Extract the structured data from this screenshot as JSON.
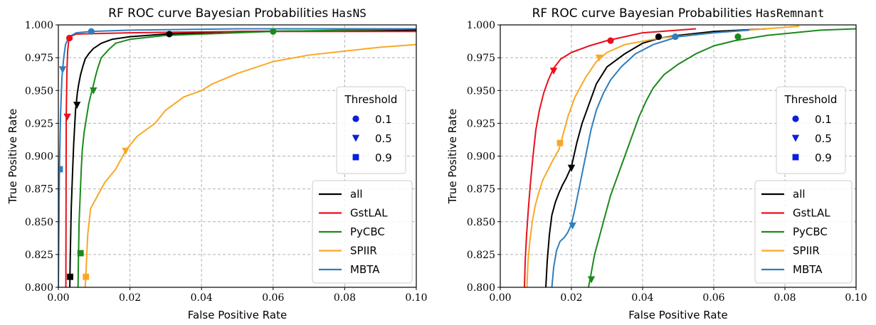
{
  "chart_data": [
    {
      "type": "line",
      "title": "RF ROC curve Bayesian Probabilities",
      "title_code": "HasNS",
      "xlabel": "False Positive Rate",
      "ylabel": "True Positive Rate",
      "xlim": [
        0.0,
        0.1
      ],
      "ylim": [
        0.8,
        1.0
      ],
      "xticks": [
        0.0,
        0.02,
        0.04,
        0.06,
        0.08,
        0.1
      ],
      "xtick_labels": [
        "0.00",
        "0.02",
        "0.04",
        "0.06",
        "0.08",
        "0.10"
      ],
      "yticks": [
        0.8,
        0.825,
        0.85,
        0.875,
        0.9,
        0.925,
        0.95,
        0.975,
        1.0
      ],
      "ytick_labels": [
        "0.800",
        "0.825",
        "0.850",
        "0.875",
        "0.900",
        "0.925",
        "0.950",
        "0.975",
        "1.000"
      ],
      "grid": true,
      "threshold_legend": {
        "title": "Threshold",
        "placement": "right",
        "entries": [
          {
            "label": "0.1",
            "marker": "circle"
          },
          {
            "label": "0.5",
            "marker": "triangle-down"
          },
          {
            "label": "0.9",
            "marker": "square"
          }
        ]
      },
      "series_legend_placement": "lower right",
      "series": [
        {
          "name": "all",
          "color": "#000000",
          "x": [
            0.0032,
            0.0033,
            0.0036,
            0.004,
            0.0043,
            0.0046,
            0.0048,
            0.005,
            0.0053,
            0.0057,
            0.0062,
            0.0068,
            0.0075,
            0.0085,
            0.0098,
            0.012,
            0.015,
            0.02,
            0.03,
            0.05,
            0.1
          ],
          "y": [
            0.8,
            0.82,
            0.86,
            0.89,
            0.91,
            0.925,
            0.935,
            0.94,
            0.948,
            0.955,
            0.962,
            0.968,
            0.974,
            0.978,
            0.982,
            0.986,
            0.989,
            0.991,
            0.993,
            0.995,
            0.996
          ],
          "thresholds": [
            {
              "marker": "circle",
              "x": 0.031,
              "y": 0.993
            },
            {
              "marker": "triangle-down",
              "x": 0.0052,
              "y": 0.939
            },
            {
              "marker": "square",
              "x": 0.0033,
              "y": 0.808
            }
          ]
        },
        {
          "name": "GstLAL",
          "color": "#e8101c",
          "x": [
            0.0021,
            0.0022,
            0.0024,
            0.0026,
            0.0029,
            0.0032,
            0.005,
            0.02,
            0.05,
            0.1
          ],
          "y": [
            0.8,
            0.93,
            0.965,
            0.98,
            0.988,
            0.991,
            0.993,
            0.994,
            0.995,
            0.995
          ],
          "thresholds": [
            {
              "marker": "circle",
              "x": 0.0031,
              "y": 0.99
            },
            {
              "marker": "triangle-down",
              "x": 0.0025,
              "y": 0.93
            }
          ]
        },
        {
          "name": "PyCBC",
          "color": "#1b8a1b",
          "x": [
            0.0055,
            0.0056,
            0.0058,
            0.0061,
            0.0064,
            0.0067,
            0.0072,
            0.0079,
            0.0085,
            0.0092,
            0.0097,
            0.0103,
            0.011,
            0.012,
            0.014,
            0.016,
            0.02,
            0.03,
            0.06,
            0.1
          ],
          "y": [
            0.8,
            0.82,
            0.85,
            0.87,
            0.89,
            0.905,
            0.918,
            0.93,
            0.94,
            0.948,
            0.953,
            0.96,
            0.967,
            0.975,
            0.981,
            0.986,
            0.989,
            0.992,
            0.995,
            0.997
          ],
          "thresholds": [
            {
              "marker": "circle",
              "x": 0.06,
              "y": 0.995
            },
            {
              "marker": "triangle-down",
              "x": 0.0098,
              "y": 0.95
            },
            {
              "marker": "square",
              "x": 0.0062,
              "y": 0.826
            }
          ]
        },
        {
          "name": "SPIIR",
          "color": "#f9a825",
          "x": [
            0.0075,
            0.0077,
            0.0082,
            0.009,
            0.011,
            0.013,
            0.016,
            0.019,
            0.022,
            0.027,
            0.03,
            0.035,
            0.04,
            0.043,
            0.05,
            0.06,
            0.07,
            0.08,
            0.09,
            0.1
          ],
          "y": [
            0.8,
            0.81,
            0.84,
            0.86,
            0.87,
            0.88,
            0.89,
            0.905,
            0.915,
            0.925,
            0.935,
            0.945,
            0.95,
            0.955,
            0.963,
            0.972,
            0.977,
            0.98,
            0.983,
            0.985
          ],
          "thresholds": [
            {
              "marker": "triangle-down",
              "x": 0.0188,
              "y": 0.904
            },
            {
              "marker": "square",
              "x": 0.0077,
              "y": 0.808
            }
          ]
        },
        {
          "name": "MBTA",
          "color": "#2e7ebc",
          "x": [
            0.0,
            0.0003,
            0.0006,
            0.001,
            0.0015,
            0.002,
            0.003,
            0.005,
            0.009,
            0.02,
            0.05,
            0.1
          ],
          "y": [
            0.8,
            0.89,
            0.93,
            0.96,
            0.975,
            0.985,
            0.991,
            0.994,
            0.995,
            0.996,
            0.997,
            0.997
          ],
          "thresholds": [
            {
              "marker": "circle",
              "x": 0.0092,
              "y": 0.995
            },
            {
              "marker": "triangle-down",
              "x": 0.0012,
              "y": 0.966
            },
            {
              "marker": "square",
              "x": 0.0004,
              "y": 0.89
            }
          ]
        }
      ]
    },
    {
      "type": "line",
      "title": "RF ROC curve Bayesian Probabilities",
      "title_code": "HasRemnant",
      "xlabel": "False Positive Rate",
      "ylabel": "True Positive Rate",
      "xlim": [
        0.0,
        0.1
      ],
      "ylim": [
        0.8,
        1.0
      ],
      "xticks": [
        0.0,
        0.02,
        0.04,
        0.06,
        0.08,
        0.1
      ],
      "xtick_labels": [
        "0.00",
        "0.02",
        "0.04",
        "0.06",
        "0.08",
        "0.10"
      ],
      "yticks": [
        0.8,
        0.825,
        0.85,
        0.875,
        0.9,
        0.925,
        0.95,
        0.975,
        1.0
      ],
      "ytick_labels": [
        "0.800",
        "0.825",
        "0.850",
        "0.875",
        "0.900",
        "0.925",
        "0.950",
        "0.975",
        "1.000"
      ],
      "grid": true,
      "threshold_legend": {
        "title": "Threshold",
        "placement": "right",
        "entries": [
          {
            "label": "0.1",
            "marker": "circle"
          },
          {
            "label": "0.5",
            "marker": "triangle-down"
          },
          {
            "label": "0.9",
            "marker": "square"
          }
        ]
      },
      "series_legend_placement": "lower right",
      "series": [
        {
          "name": "all",
          "color": "#000000",
          "x": [
            0.0128,
            0.0132,
            0.0138,
            0.0145,
            0.0155,
            0.0165,
            0.0175,
            0.0185,
            0.02,
            0.0215,
            0.023,
            0.025,
            0.027,
            0.03,
            0.035,
            0.04,
            0.045,
            0.05,
            0.06,
            0.075
          ],
          "y": [
            0.8,
            0.82,
            0.84,
            0.855,
            0.865,
            0.872,
            0.878,
            0.883,
            0.892,
            0.91,
            0.925,
            0.94,
            0.955,
            0.968,
            0.978,
            0.986,
            0.99,
            0.992,
            0.995,
            0.997
          ],
          "thresholds": [
            {
              "marker": "circle",
              "x": 0.0445,
              "y": 0.991
            },
            {
              "marker": "triangle-down",
              "x": 0.02,
              "y": 0.891
            }
          ]
        },
        {
          "name": "GstLAL",
          "color": "#e8101c",
          "x": [
            0.0068,
            0.007,
            0.0074,
            0.0079,
            0.0085,
            0.0092,
            0.01,
            0.011,
            0.0122,
            0.0135,
            0.015,
            0.017,
            0.02,
            0.025,
            0.03,
            0.035,
            0.04,
            0.05,
            0.055
          ],
          "y": [
            0.8,
            0.82,
            0.84,
            0.86,
            0.88,
            0.9,
            0.92,
            0.935,
            0.948,
            0.958,
            0.967,
            0.974,
            0.979,
            0.984,
            0.988,
            0.991,
            0.994,
            0.996,
            0.997
          ],
          "thresholds": [
            {
              "marker": "circle",
              "x": 0.031,
              "y": 0.988
            },
            {
              "marker": "triangle-down",
              "x": 0.015,
              "y": 0.965
            }
          ]
        },
        {
          "name": "PyCBC",
          "color": "#1b8a1b",
          "x": [
            0.0248,
            0.0255,
            0.0265,
            0.028,
            0.0295,
            0.031,
            0.033,
            0.035,
            0.037,
            0.039,
            0.041,
            0.043,
            0.046,
            0.05,
            0.055,
            0.06,
            0.066,
            0.075,
            0.09,
            0.1
          ],
          "y": [
            0.8,
            0.81,
            0.825,
            0.84,
            0.855,
            0.87,
            0.885,
            0.9,
            0.915,
            0.93,
            0.942,
            0.952,
            0.962,
            0.97,
            0.978,
            0.984,
            0.988,
            0.992,
            0.996,
            0.997
          ],
          "thresholds": [
            {
              "marker": "circle",
              "x": 0.0668,
              "y": 0.991
            },
            {
              "marker": "triangle-down",
              "x": 0.0256,
              "y": 0.806
            }
          ]
        },
        {
          "name": "SPIIR",
          "color": "#f9a825",
          "x": [
            0.0075,
            0.0078,
            0.0083,
            0.009,
            0.0098,
            0.0108,
            0.012,
            0.0135,
            0.015,
            0.0165,
            0.017,
            0.018,
            0.019,
            0.021,
            0.024,
            0.027,
            0.03,
            0.035,
            0.045,
            0.06,
            0.084
          ],
          "y": [
            0.8,
            0.82,
            0.835,
            0.85,
            0.862,
            0.872,
            0.882,
            0.89,
            0.898,
            0.905,
            0.91,
            0.92,
            0.93,
            0.945,
            0.96,
            0.972,
            0.979,
            0.985,
            0.99,
            0.994,
            0.999
          ],
          "thresholds": [
            {
              "marker": "triangle-down",
              "x": 0.0278,
              "y": 0.975
            },
            {
              "marker": "square",
              "x": 0.0168,
              "y": 0.91
            }
          ]
        },
        {
          "name": "MBTA",
          "color": "#2e7ebc",
          "x": [
            0.0145,
            0.015,
            0.0158,
            0.0168,
            0.018,
            0.019,
            0.02,
            0.021,
            0.0225,
            0.024,
            0.0255,
            0.027,
            0.029,
            0.031,
            0.034,
            0.038,
            0.043,
            0.05,
            0.06,
            0.07
          ],
          "y": [
            0.8,
            0.815,
            0.828,
            0.835,
            0.838,
            0.842,
            0.848,
            0.86,
            0.88,
            0.9,
            0.92,
            0.935,
            0.948,
            0.958,
            0.968,
            0.978,
            0.985,
            0.991,
            0.994,
            0.996
          ],
          "thresholds": [
            {
              "marker": "circle",
              "x": 0.0492,
              "y": 0.991
            },
            {
              "marker": "triangle-down",
              "x": 0.0203,
              "y": 0.847
            }
          ]
        }
      ]
    }
  ]
}
